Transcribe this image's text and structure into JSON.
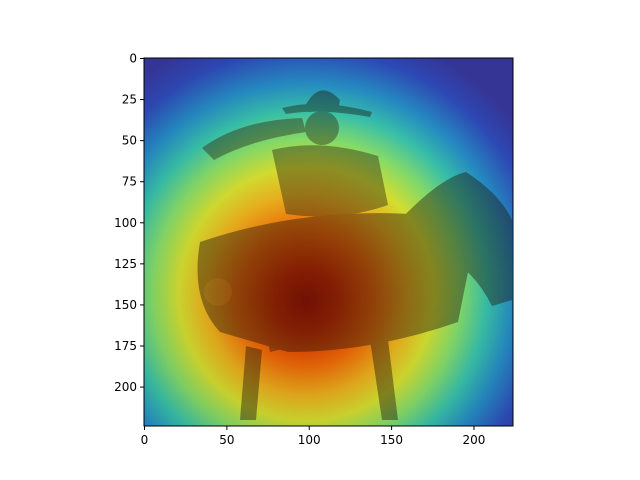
{
  "figure": {
    "type": "image-with-heatmap-overlay",
    "image_subject": "black-and-white photo of a saluting rider in a wide-brim hat on a horse, overlaid with a jet-colormap attention heatmap (red at the center, blue at the edges)",
    "colormap": "jet",
    "background": "#ffffff"
  },
  "axes": {
    "x_range": [
      0,
      224
    ],
    "y_range": [
      224,
      0
    ],
    "x_ticks": [
      "0",
      "50",
      "100",
      "150",
      "200"
    ],
    "y_ticks": [
      "0",
      "25",
      "50",
      "75",
      "100",
      "125",
      "150",
      "175",
      "200"
    ],
    "x_tick_values": [
      0,
      50,
      100,
      150,
      200
    ],
    "y_tick_values": [
      0,
      25,
      50,
      75,
      100,
      125,
      150,
      175,
      200
    ]
  },
  "heatmap": {
    "peak_color": "#c81e00",
    "mid_color": "#e6e632",
    "low_color": "#3c46c8",
    "edge_color": "#283caa"
  }
}
